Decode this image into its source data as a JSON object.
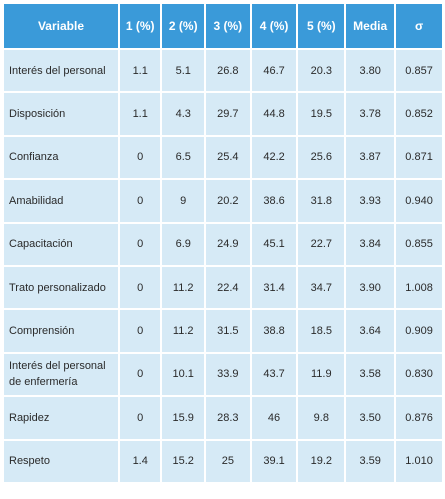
{
  "table": {
    "headers": [
      "Variable",
      "1 (%)",
      "2 (%)",
      "3 (%)",
      "4 (%)",
      "5 (%)",
      "Media",
      "σ"
    ],
    "rows": [
      {
        "variable": "Interés del personal",
        "p1": "1.1",
        "p2": "5.1",
        "p3": "26.8",
        "p4": "46.7",
        "p5": "20.3",
        "media": "3.80",
        "sigma": "0.857"
      },
      {
        "variable": "Disposición",
        "p1": "1.1",
        "p2": "4.3",
        "p3": "29.7",
        "p4": "44.8",
        "p5": "19.5",
        "media": "3.78",
        "sigma": "0.852"
      },
      {
        "variable": "Confianza",
        "p1": "0",
        "p2": "6.5",
        "p3": "25.4",
        "p4": "42.2",
        "p5": "25.6",
        "media": "3.87",
        "sigma": "0.871"
      },
      {
        "variable": "Amabilidad",
        "p1": "0",
        "p2": "9",
        "p3": "20.2",
        "p4": "38.6",
        "p5": "31.8",
        "media": "3.93",
        "sigma": "0.940"
      },
      {
        "variable": "Capacitación",
        "p1": "0",
        "p2": "6.9",
        "p3": "24.9",
        "p4": "45.1",
        "p5": "22.7",
        "media": "3.84",
        "sigma": "0.855"
      },
      {
        "variable": "Trato personalizado",
        "p1": "0",
        "p2": "11.2",
        "p3": "22.4",
        "p4": "31.4",
        "p5": "34.7",
        "media": "3.90",
        "sigma": "1.008"
      },
      {
        "variable": "Comprensión",
        "p1": "0",
        "p2": "11.2",
        "p3": "31.5",
        "p4": "38.8",
        "p5": "18.5",
        "media": "3.64",
        "sigma": "0.909"
      },
      {
        "variable": "Interés del personal\nde enfermería",
        "p1": "0",
        "p2": "10.1",
        "p3": "33.9",
        "p4": "43.7",
        "p5": "11.9",
        "media": "3.58",
        "sigma": "0.830"
      },
      {
        "variable": "Rapidez",
        "p1": "0",
        "p2": "15.9",
        "p3": "28.3",
        "p4": "46",
        "p5": "9.8",
        "media": "3.50",
        "sigma": "0.876"
      },
      {
        "variable": "Respeto",
        "p1": "1.4",
        "p2": "15.2",
        "p3": "25",
        "p4": "39.1",
        "p5": "19.2",
        "media": "3.59",
        "sigma": "1.010"
      }
    ]
  },
  "colors": {
    "header_bg": "#3a9ad9",
    "header_text": "#ffffff",
    "cell_bg": "#d6eaf6",
    "cell_text": "#2a2a2a"
  }
}
